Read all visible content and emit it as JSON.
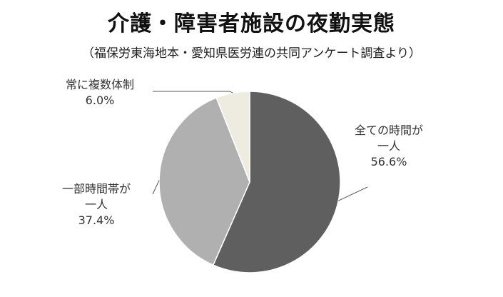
{
  "title": "介護・障害者施設の夜勤実態",
  "subtitle": "（福保労東海地本・愛知県医労連の共同アンケート調査より）",
  "chart_data": {
    "type": "pie",
    "title": "介護・障害者施設の夜勤実態",
    "subtitle": "（福保労東海地本・愛知県医労連の共同アンケート調査より）",
    "slices": [
      {
        "label": "全ての時間が一人",
        "label_lines": [
          "全ての時間が",
          "一人"
        ],
        "value": 56.6,
        "value_label": "56.6%",
        "color": "#5f5f5f"
      },
      {
        "label": "一部時間帯が一人",
        "label_lines": [
          "一部時間帯が",
          "一人"
        ],
        "value": 37.4,
        "value_label": "37.4%",
        "color": "#b0b0b0"
      },
      {
        "label": "常に複数体制",
        "label_lines": [
          "常に複数体制"
        ],
        "value": 6.0,
        "value_label": "6.0%",
        "color": "#eeece1"
      }
    ],
    "start_angle_deg": 0,
    "direction": "clockwise",
    "legend": "none"
  }
}
